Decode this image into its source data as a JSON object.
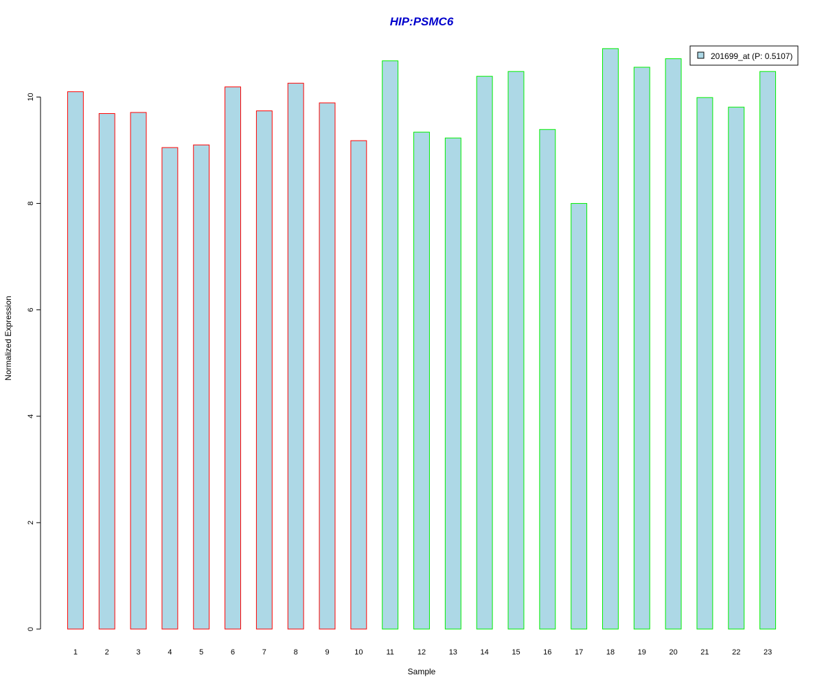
{
  "chart_data": {
    "type": "bar",
    "title": "HIP:PSMC6",
    "title_color": "#0000cc",
    "xlabel": "Sample",
    "ylabel": "Normalized Expression",
    "ylim": [
      0,
      11.05
    ],
    "yticks": [
      0,
      2,
      4,
      6,
      8,
      10
    ],
    "categories": [
      "1",
      "2",
      "3",
      "4",
      "5",
      "6",
      "7",
      "8",
      "9",
      "10",
      "11",
      "12",
      "13",
      "14",
      "15",
      "16",
      "17",
      "18",
      "19",
      "20",
      "21",
      "22",
      "23"
    ],
    "values": [
      10.1,
      9.69,
      9.71,
      9.05,
      9.1,
      10.19,
      9.74,
      10.26,
      9.89,
      9.18,
      10.68,
      9.34,
      9.23,
      10.39,
      10.48,
      9.39,
      8.0,
      10.91,
      10.56,
      10.72,
      9.99,
      9.81,
      10.48
    ],
    "fill_color": "#add8e6",
    "group_border_colors": [
      "#ff0000",
      "#ff0000",
      "#ff0000",
      "#ff0000",
      "#ff0000",
      "#ff0000",
      "#ff0000",
      "#ff0000",
      "#ff0000",
      "#ff0000",
      "#00ee00",
      "#00ee00",
      "#00ee00",
      "#00ee00",
      "#00ee00",
      "#00ee00",
      "#00ee00",
      "#00ee00",
      "#00ee00",
      "#00ee00",
      "#00ee00",
      "#00ee00",
      "#00ee00"
    ],
    "legend": {
      "label": "201699_at (P: 0.5107)",
      "position": "top-right"
    },
    "grid": false
  }
}
